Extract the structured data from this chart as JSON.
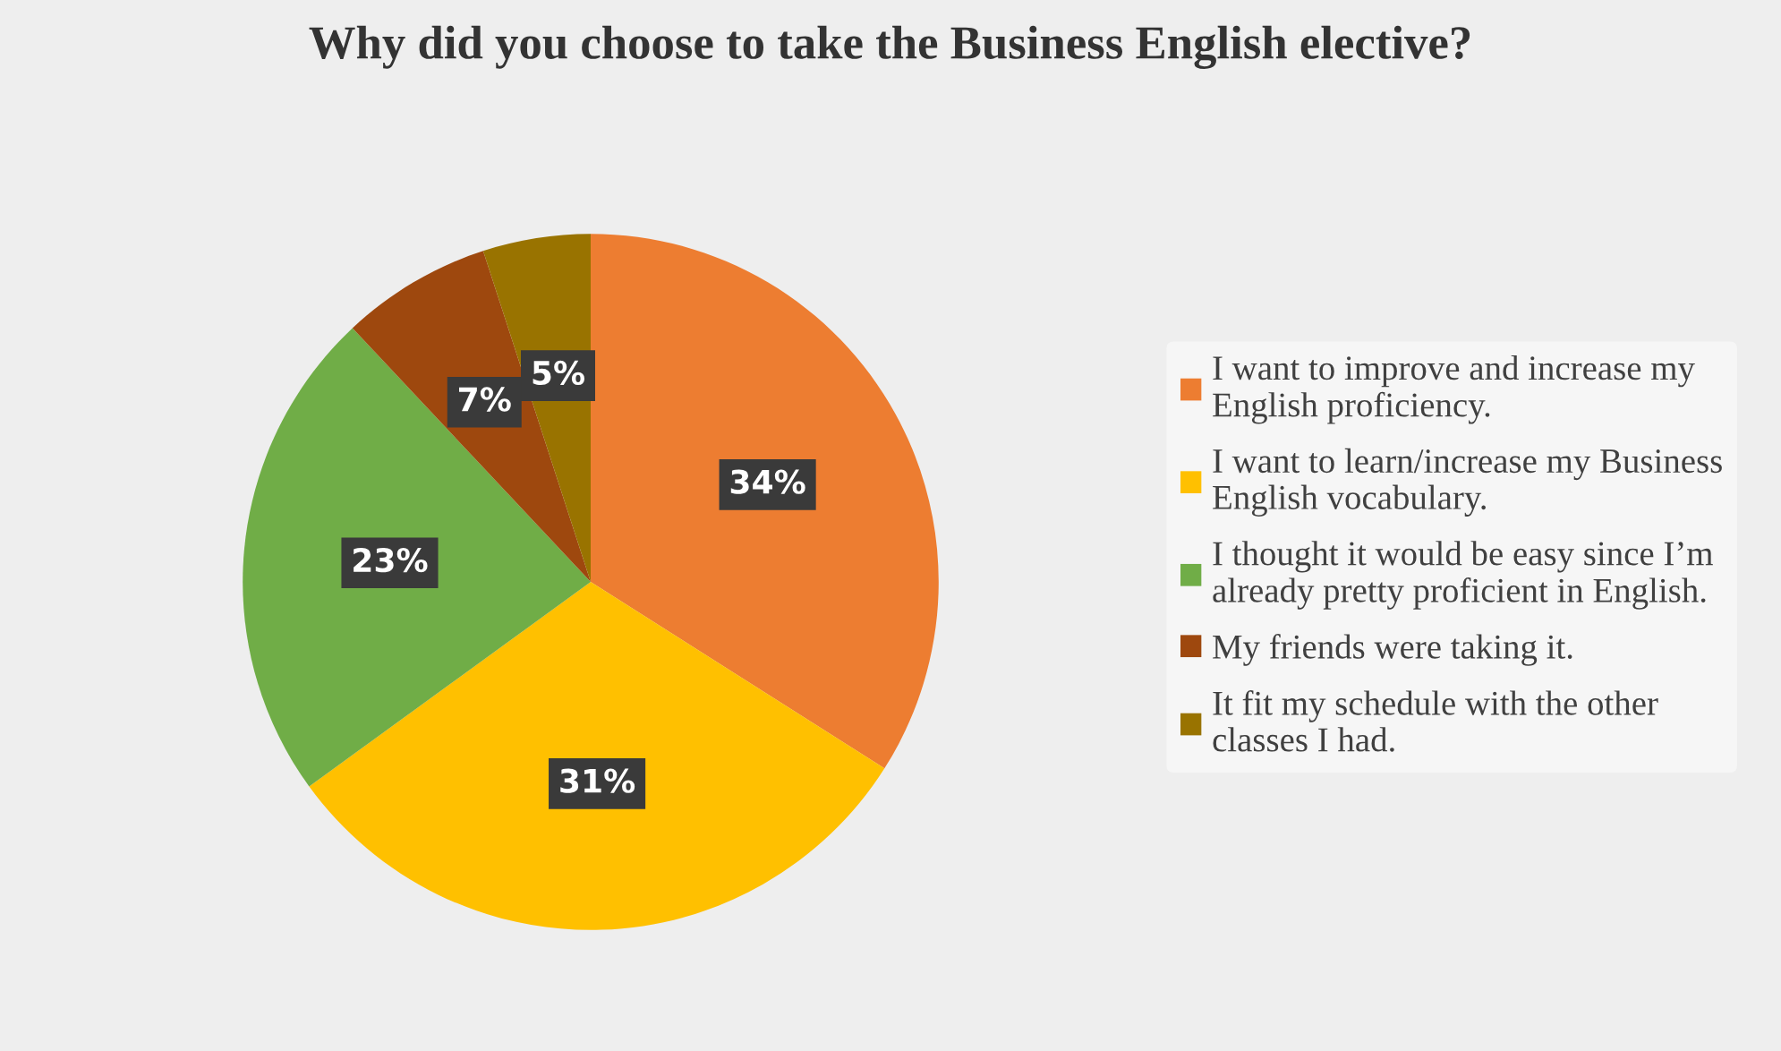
{
  "chart_data": {
    "type": "pie",
    "title": "Why did you choose to take the Business English elective?",
    "categories": [
      "I want to improve and increase my\nEnglish proficiency.",
      "I want to learn/increase my Business\nEnglish vocabulary.",
      "I thought it would be easy since I’m\nalready pretty proficient in English.",
      "My friends were taking it.",
      "It fit my schedule with the other\nclasses I had."
    ],
    "values": [
      34,
      31,
      23,
      7,
      5
    ],
    "colors": [
      "#ed7d31",
      "#ffc000",
      "#70ad47",
      "#9e480e",
      "#997300"
    ],
    "value_labels": [
      "34%",
      "31%",
      "23%",
      "7%",
      "5%"
    ],
    "legend": "right"
  }
}
